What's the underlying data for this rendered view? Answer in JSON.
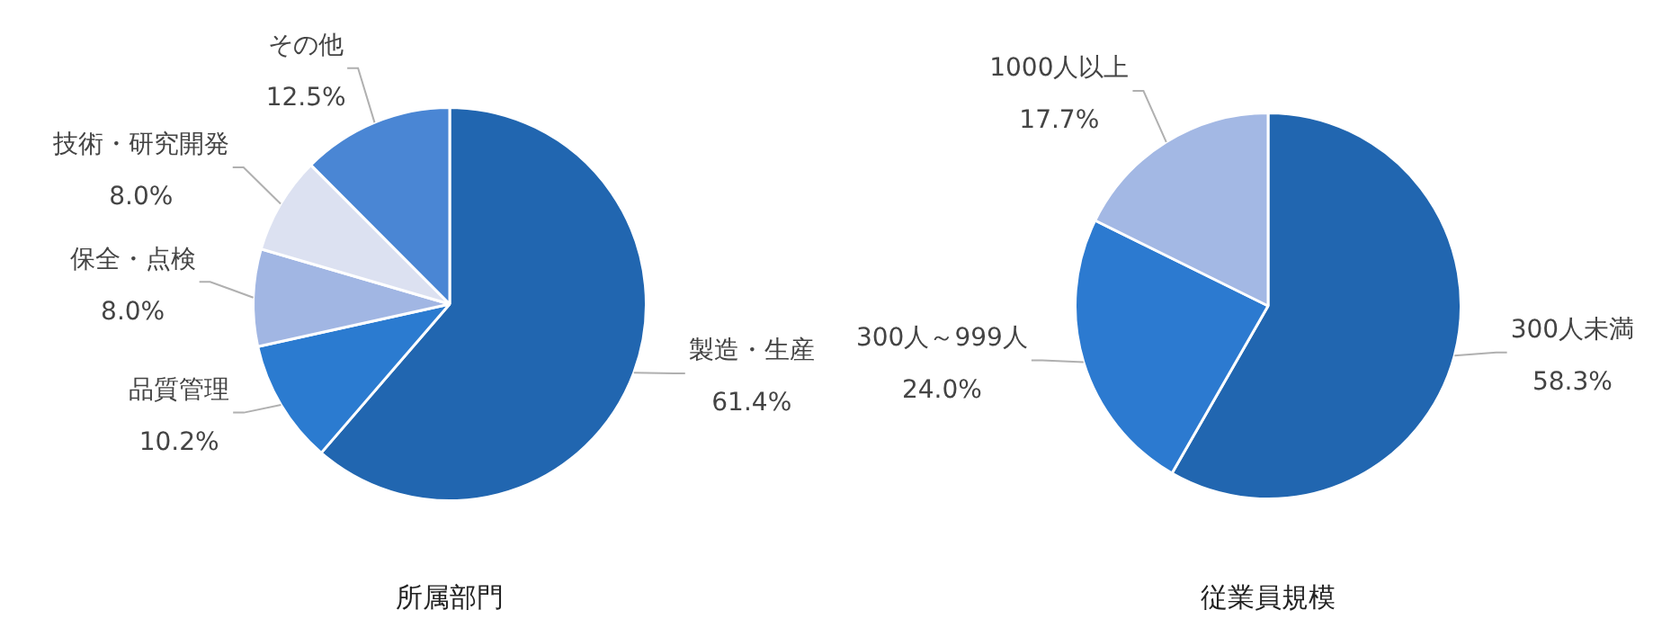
{
  "chart_data": [
    {
      "type": "pie",
      "title": "所属部門",
      "categories": [
        "製造・生産",
        "品質管理",
        "保全・点検",
        "技術・研究開発",
        "その他"
      ],
      "values": [
        61.4,
        10.2,
        8.0,
        8.0,
        12.5
      ],
      "value_labels": [
        "61.4%",
        "10.2%",
        "8.0%",
        "8.0%",
        "12.5%"
      ],
      "colors": [
        "#2166b0",
        "#2b7bd0",
        "#a1b6e3",
        "#dce1f1",
        "#4a86d4"
      ],
      "legend": false
    },
    {
      "type": "pie",
      "title": "従業員規模",
      "categories": [
        "300人未満",
        "300人～999人",
        "1000人以上"
      ],
      "values": [
        58.3,
        24.0,
        17.7
      ],
      "value_labels": [
        "58.3%",
        "24.0%",
        "17.7%"
      ],
      "colors": [
        "#2166b0",
        "#2c7ad0",
        "#a3b8e4"
      ],
      "legend": false
    }
  ]
}
